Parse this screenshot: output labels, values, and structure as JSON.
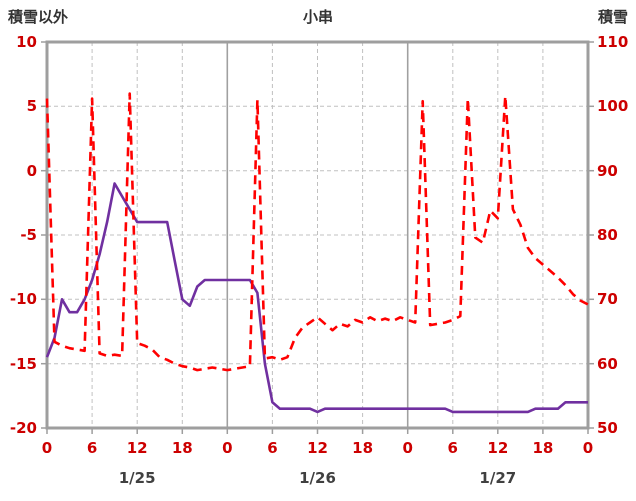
{
  "header": {
    "left_axis_title": "積雪以外",
    "chart_title": "小串",
    "right_axis_title": "積雪"
  },
  "chart_data": {
    "type": "line",
    "title": "小串",
    "grid": true,
    "legend": "none",
    "left_axis": {
      "label": "積雪以外",
      "min": -20,
      "max": 10,
      "ticks": [
        10,
        5,
        0,
        -5,
        -10,
        -15,
        -20
      ]
    },
    "right_axis": {
      "label": "積雪",
      "min": 50,
      "max": 110,
      "ticks": [
        110,
        100,
        90,
        80,
        70,
        60,
        50
      ]
    },
    "x_axis": {
      "min": 0,
      "max": 72,
      "tick_interval": 6,
      "tick_labels": [
        "0",
        "6",
        "12",
        "18",
        "0",
        "6",
        "12",
        "18",
        "0",
        "6",
        "12",
        "18",
        "0"
      ],
      "day_labels": [
        "1/25",
        "1/26",
        "1/27"
      ],
      "day_label_hours": [
        12,
        36,
        60
      ],
      "day_boundaries": [
        24,
        48
      ]
    },
    "series": [
      {
        "name": "積雪以外",
        "axis": "left",
        "color": "#ff0000",
        "style": "dashed",
        "x": [
          0,
          1,
          2,
          3,
          4,
          5,
          6,
          7,
          8,
          9,
          10,
          11,
          12,
          13,
          14,
          15,
          16,
          17,
          18,
          19,
          20,
          21,
          22,
          23,
          24,
          25,
          26,
          27,
          28,
          29,
          30,
          31,
          32,
          33,
          34,
          35,
          36,
          37,
          38,
          39,
          40,
          41,
          42,
          43,
          44,
          45,
          46,
          47,
          48,
          49,
          50,
          51,
          52,
          53,
          54,
          55,
          56,
          57,
          58,
          59,
          60,
          61,
          62,
          63,
          64,
          65,
          66,
          67,
          68,
          69,
          70,
          71,
          72
        ],
        "values": [
          5.6,
          -13.3,
          -13.6,
          -13.8,
          -13.9,
          -14.0,
          5.6,
          -14.2,
          -14.4,
          -14.3,
          -14.4,
          6.0,
          -13.4,
          -13.6,
          -13.9,
          -14.5,
          -14.7,
          -15.0,
          -15.2,
          -15.3,
          -15.5,
          -15.4,
          -15.3,
          -15.4,
          -15.5,
          -15.4,
          -15.3,
          -15.2,
          5.5,
          -14.6,
          -14.5,
          -14.7,
          -14.5,
          -13.0,
          -12.2,
          -11.8,
          -11.4,
          -11.9,
          -12.4,
          -11.9,
          -12.1,
          -11.6,
          -11.8,
          -11.4,
          -11.7,
          -11.5,
          -11.7,
          -11.4,
          -11.6,
          -11.8,
          5.4,
          -12.0,
          -11.9,
          -11.8,
          -11.6,
          -11.3,
          5.6,
          -5.2,
          -5.6,
          -3.1,
          -3.7,
          5.8,
          -3.0,
          -4.2,
          -6.0,
          -6.8,
          -7.3,
          -7.8,
          -8.3,
          -8.9,
          -9.6,
          -10.1,
          -10.4
        ]
      },
      {
        "name": "積雪",
        "axis": "right",
        "color": "#7030a0",
        "style": "solid",
        "x": [
          0,
          1,
          2,
          3,
          4,
          5,
          6,
          7,
          8,
          9,
          10,
          11,
          12,
          13,
          14,
          15,
          16,
          17,
          18,
          19,
          20,
          21,
          22,
          23,
          24,
          25,
          26,
          27,
          28,
          29,
          30,
          31,
          32,
          33,
          34,
          35,
          36,
          37,
          38,
          39,
          40,
          41,
          42,
          43,
          44,
          45,
          46,
          47,
          48,
          49,
          50,
          51,
          52,
          53,
          54,
          55,
          56,
          57,
          58,
          59,
          60,
          61,
          62,
          63,
          64,
          65,
          66,
          67,
          68,
          69,
          70,
          71,
          72
        ],
        "values": [
          61,
          64,
          70,
          68,
          68,
          70,
          73,
          77,
          82,
          88,
          86,
          84,
          82,
          82,
          82,
          82,
          82,
          76,
          70,
          69,
          72,
          73,
          73,
          73,
          73,
          73,
          73,
          73,
          71,
          60,
          54,
          53,
          53,
          53,
          53,
          53,
          52.5,
          53,
          53,
          53,
          53,
          53,
          53,
          53,
          53,
          53,
          53,
          53,
          53,
          53,
          53,
          53,
          53,
          53,
          52.5,
          52.5,
          52.5,
          52.5,
          52.5,
          52.5,
          52.5,
          52.5,
          52.5,
          52.5,
          52.5,
          53,
          53,
          53,
          53,
          54,
          54,
          54,
          54
        ]
      }
    ],
    "colors": {
      "grid": "#c0c0c0",
      "frame": "#9e9e9e",
      "day_line": "#a0a0a0",
      "tick_label": "#cc0000",
      "date_label": "#404040",
      "title": "#333333"
    }
  }
}
